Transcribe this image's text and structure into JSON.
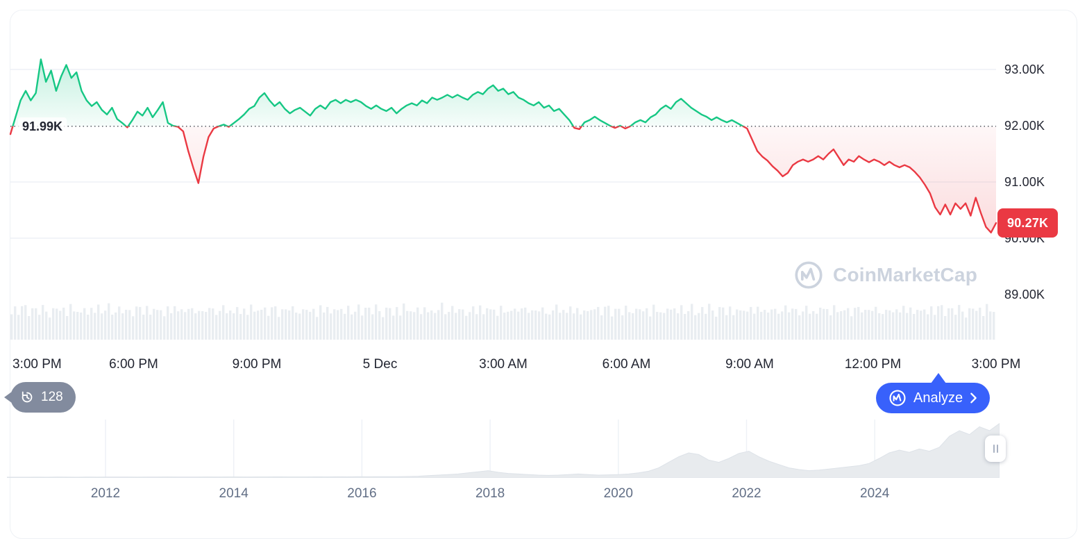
{
  "watermark": {
    "label": "CoinMarketCap"
  },
  "history_badge": {
    "label": "128"
  },
  "analyze_button": {
    "label": "Analyze"
  },
  "colors": {
    "up": "#16c784",
    "down": "#ea3943",
    "brand_blue": "#3861fb",
    "badge_gray": "#828b9e",
    "grid": "#eef1f6",
    "axis_text": "#222531",
    "muted_text": "#616e85",
    "watermark_gray": "#ccd3de"
  },
  "chart_data": [
    {
      "type": "line",
      "name": "price-line-chart-24h",
      "baseline_value": 91.99,
      "baseline_label": "91.99K",
      "last_price_value": 90.27,
      "last_price_label": "90.27K",
      "up_color": "#16c784",
      "down_color": "#ea3943",
      "y_axis": {
        "range": [
          89.11,
          94.05
        ],
        "unit": "K",
        "ticks": [
          {
            "label": "93.00K",
            "value": 93
          },
          {
            "label": "92.00K",
            "value": 92
          },
          {
            "label": "91.00K",
            "value": 91
          },
          {
            "label": "90.00K",
            "value": 90
          },
          {
            "label": "89.00K",
            "value": 89
          }
        ],
        "grid_values": [
          93,
          91,
          90
        ]
      },
      "x_ticks": [
        "3:00 PM",
        "6:00 PM",
        "9:00 PM",
        "5 Dec",
        "3:00 AM",
        "6:00 AM",
        "9:00 AM",
        "12:00 PM",
        "3:00 PM"
      ],
      "series": [
        {
          "name": "price",
          "values": [
            91.85,
            92.15,
            92.45,
            92.62,
            92.45,
            92.58,
            93.18,
            92.78,
            92.98,
            92.62,
            92.88,
            93.08,
            92.85,
            92.95,
            92.62,
            92.45,
            92.35,
            92.42,
            92.28,
            92.2,
            92.32,
            92.12,
            92.05,
            91.97,
            92.1,
            92.25,
            92.18,
            92.32,
            92.15,
            92.28,
            92.42,
            92.05,
            92.0,
            91.98,
            91.9,
            91.55,
            91.25,
            90.98,
            91.45,
            91.8,
            91.95,
            91.99,
            92.02,
            91.98,
            92.05,
            92.12,
            92.2,
            92.3,
            92.35,
            92.5,
            92.58,
            92.45,
            92.35,
            92.42,
            92.3,
            92.22,
            92.28,
            92.32,
            92.25,
            92.18,
            92.3,
            92.36,
            92.3,
            92.42,
            92.46,
            92.4,
            92.46,
            92.42,
            92.46,
            92.42,
            92.35,
            92.3,
            92.36,
            92.3,
            92.26,
            92.32,
            92.22,
            92.3,
            92.36,
            92.4,
            92.36,
            92.45,
            92.4,
            92.5,
            92.46,
            92.5,
            92.55,
            92.5,
            92.55,
            92.5,
            92.46,
            92.55,
            92.6,
            92.56,
            92.66,
            92.72,
            92.62,
            92.66,
            92.56,
            92.6,
            92.5,
            92.46,
            92.4,
            92.36,
            92.42,
            92.32,
            92.36,
            92.26,
            92.3,
            92.2,
            92.1,
            91.96,
            91.94,
            92.06,
            92.1,
            92.16,
            92.1,
            92.05,
            92.0,
            91.96,
            92.0,
            91.95,
            91.99,
            92.06,
            92.1,
            92.06,
            92.15,
            92.2,
            92.3,
            92.36,
            92.3,
            92.42,
            92.48,
            92.4,
            92.32,
            92.26,
            92.2,
            92.16,
            92.1,
            92.15,
            92.1,
            92.06,
            92.1,
            92.05,
            92.0,
            91.95,
            91.75,
            91.55,
            91.45,
            91.38,
            91.28,
            91.2,
            91.1,
            91.16,
            91.3,
            91.36,
            91.4,
            91.36,
            91.4,
            91.46,
            91.4,
            91.5,
            91.58,
            91.44,
            91.3,
            91.4,
            91.36,
            91.46,
            91.4,
            91.35,
            91.4,
            91.36,
            91.3,
            91.36,
            91.3,
            91.26,
            91.3,
            91.26,
            91.18,
            91.08,
            90.95,
            90.8,
            90.55,
            90.42,
            90.6,
            90.42,
            90.62,
            90.52,
            90.62,
            90.4,
            90.72,
            90.45,
            90.2,
            90.1,
            90.27
          ]
        }
      ],
      "volume": {
        "color": "#e9edf1",
        "bars": 284,
        "pattern": [
          0.78,
          0.9,
          0.72,
          0.86,
          0.95,
          0.7,
          0.82,
          0.88,
          0.75,
          0.92,
          0.8,
          0.68,
          0.85,
          0.9,
          0.74,
          0.88,
          0.7,
          0.93,
          0.79,
          0.84,
          0.72,
          0.9,
          0.77,
          0.86
        ]
      }
    },
    {
      "type": "area",
      "name": "all-time-history-navigator",
      "fill_color": "#e8ebee",
      "edge_color": "#dde2e8",
      "x_ticks": [
        "2012",
        "2014",
        "2016",
        "2018",
        "2020",
        "2022",
        "2024"
      ],
      "series": [
        {
          "name": "price-history-normalized",
          "values": [
            0.012,
            0.013,
            0.012,
            0.014,
            0.013,
            0.015,
            0.014,
            0.013,
            0.015,
            0.014,
            0.015,
            0.016,
            0.015,
            0.014,
            0.016,
            0.015,
            0.017,
            0.016,
            0.015,
            0.016,
            0.017,
            0.016,
            0.018,
            0.017,
            0.016,
            0.018,
            0.017,
            0.019,
            0.018,
            0.017,
            0.018,
            0.019,
            0.018,
            0.02,
            0.019,
            0.021,
            0.02,
            0.022,
            0.021,
            0.023,
            0.025,
            0.03,
            0.04,
            0.05,
            0.06,
            0.07,
            0.09,
            0.11,
            0.13,
            0.1,
            0.08,
            0.07,
            0.06,
            0.05,
            0.045,
            0.05,
            0.06,
            0.07,
            0.06,
            0.05,
            0.055,
            0.06,
            0.07,
            0.09,
            0.12,
            0.18,
            0.28,
            0.38,
            0.45,
            0.42,
            0.32,
            0.28,
            0.35,
            0.44,
            0.48,
            0.38,
            0.3,
            0.24,
            0.18,
            0.15,
            0.13,
            0.14,
            0.16,
            0.18,
            0.2,
            0.22,
            0.26,
            0.35,
            0.45,
            0.5,
            0.46,
            0.52,
            0.48,
            0.55,
            0.75,
            0.85,
            0.78,
            0.92,
            0.85,
            0.98
          ]
        }
      ]
    }
  ]
}
